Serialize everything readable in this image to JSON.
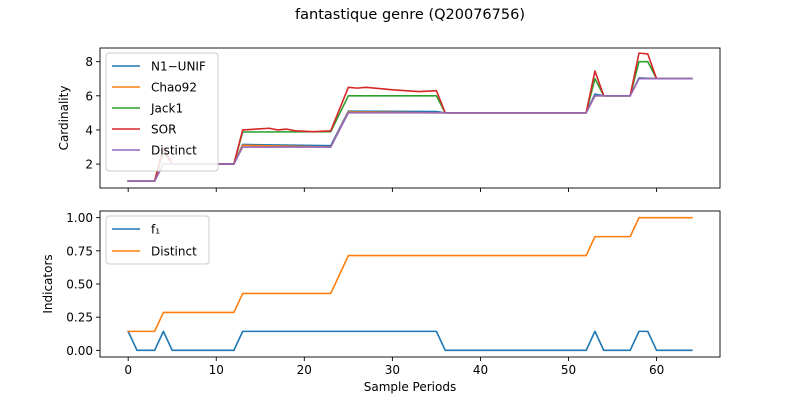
{
  "figure": {
    "title": "fantastique genre (Q20076756)"
  },
  "chart_data": [
    {
      "type": "line",
      "ylabel": "Cardinality",
      "xlabel": "",
      "xlim": [
        -3.2,
        67.2
      ],
      "ylim": [
        0.6,
        8.8
      ],
      "xticks": [
        0,
        10,
        20,
        30,
        40,
        50,
        60
      ],
      "yticks": [
        2,
        4,
        6,
        8
      ],
      "ytick_labels": [
        "2",
        "4",
        "6",
        "8"
      ],
      "legend_position": "upper-left",
      "series": [
        {
          "name": "N1−UNIF",
          "color": "#1f77b4",
          "points": [
            [
              0,
              1
            ],
            [
              3,
              1
            ],
            [
              4,
              2.7
            ],
            [
              5,
              2
            ],
            [
              12,
              2
            ],
            [
              13,
              3.15
            ],
            [
              23,
              3.08
            ],
            [
              25,
              5.1
            ],
            [
              35,
              5.08
            ],
            [
              36,
              5
            ],
            [
              52,
              5
            ],
            [
              53,
              6.1
            ],
            [
              54,
              6
            ],
            [
              57,
              6
            ],
            [
              58,
              7.05
            ],
            [
              60,
              7
            ],
            [
              64,
              7
            ]
          ]
        },
        {
          "name": "Chao92",
          "color": "#ff7f0e",
          "points": [
            [
              0,
              1
            ],
            [
              3,
              1
            ],
            [
              4,
              2.8
            ],
            [
              5,
              2
            ],
            [
              12,
              2
            ],
            [
              13,
              3.1
            ],
            [
              23,
              3
            ],
            [
              25,
              5.05
            ],
            [
              35,
              5
            ],
            [
              36,
              5
            ],
            [
              52,
              5
            ],
            [
              53,
              6
            ],
            [
              54,
              6
            ],
            [
              57,
              6
            ],
            [
              58,
              7
            ],
            [
              59,
              7
            ],
            [
              60,
              7
            ],
            [
              64,
              7
            ]
          ]
        },
        {
          "name": "Jack1",
          "color": "#2ca02c",
          "points": [
            [
              0,
              1
            ],
            [
              3,
              1
            ],
            [
              4,
              2.9
            ],
            [
              5,
              2
            ],
            [
              12,
              2
            ],
            [
              13,
              3.88
            ],
            [
              14,
              3.88
            ],
            [
              23,
              3.9
            ],
            [
              25,
              6
            ],
            [
              35,
              6
            ],
            [
              36,
              5
            ],
            [
              52,
              5
            ],
            [
              53,
              7
            ],
            [
              54,
              6
            ],
            [
              57,
              6
            ],
            [
              58,
              8
            ],
            [
              59,
              8
            ],
            [
              60,
              7
            ],
            [
              64,
              7
            ]
          ]
        },
        {
          "name": "SOR",
          "color": "#d62728",
          "points": [
            [
              0,
              1
            ],
            [
              3,
              1
            ],
            [
              4,
              2.95
            ],
            [
              5,
              2
            ],
            [
              12,
              2
            ],
            [
              13,
              4
            ],
            [
              16,
              4.1
            ],
            [
              17,
              4
            ],
            [
              18,
              4.05
            ],
            [
              19,
              3.95
            ],
            [
              21,
              3.9
            ],
            [
              23,
              3.95
            ],
            [
              25,
              6.5
            ],
            [
              26,
              6.45
            ],
            [
              27,
              6.5
            ],
            [
              30,
              6.35
            ],
            [
              33,
              6.25
            ],
            [
              35,
              6.3
            ],
            [
              36,
              5
            ],
            [
              52,
              5
            ],
            [
              53,
              7.45
            ],
            [
              54,
              6
            ],
            [
              57,
              6
            ],
            [
              58,
              8.5
            ],
            [
              59,
              8.45
            ],
            [
              60,
              7
            ],
            [
              64,
              7
            ]
          ]
        },
        {
          "name": "Distinct",
          "color": "#9467bd",
          "points": [
            [
              0,
              1
            ],
            [
              3,
              1
            ],
            [
              4,
              2
            ],
            [
              12,
              2
            ],
            [
              13,
              3
            ],
            [
              23,
              3
            ],
            [
              25,
              5
            ],
            [
              35,
              5
            ],
            [
              36,
              5
            ],
            [
              52,
              5
            ],
            [
              53,
              6
            ],
            [
              57,
              6
            ],
            [
              58,
              7
            ],
            [
              64,
              7
            ]
          ]
        }
      ]
    },
    {
      "type": "line",
      "ylabel": "Indicators",
      "xlabel": "Sample Periods",
      "xlim": [
        -3.2,
        67.2
      ],
      "ylim": [
        -0.05,
        1.05
      ],
      "xticks": [
        0,
        10,
        20,
        30,
        40,
        50,
        60
      ],
      "xtick_labels": [
        "0",
        "10",
        "20",
        "30",
        "40",
        "50",
        "60"
      ],
      "yticks": [
        0,
        0.25,
        0.5,
        0.75,
        1.0
      ],
      "ytick_labels": [
        "0.00",
        "0.25",
        "0.50",
        "0.75",
        "1.00"
      ],
      "legend_position": "upper-left",
      "series": [
        {
          "name": "f₁",
          "color": "#1f77b4",
          "points": [
            [
              0,
              0.143
            ],
            [
              1,
              0
            ],
            [
              3,
              0
            ],
            [
              4,
              0.143
            ],
            [
              5,
              0
            ],
            [
              12,
              0
            ],
            [
              13,
              0.143
            ],
            [
              35,
              0.143
            ],
            [
              36,
              0
            ],
            [
              52,
              0
            ],
            [
              53,
              0.143
            ],
            [
              54,
              0
            ],
            [
              57,
              0
            ],
            [
              58,
              0.143
            ],
            [
              59,
              0.143
            ],
            [
              60,
              0
            ],
            [
              64,
              0
            ]
          ]
        },
        {
          "name": "Distinct",
          "color": "#ff7f0e",
          "points": [
            [
              0,
              0.143
            ],
            [
              3,
              0.143
            ],
            [
              4,
              0.286
            ],
            [
              12,
              0.286
            ],
            [
              13,
              0.429
            ],
            [
              23,
              0.429
            ],
            [
              25,
              0.714
            ],
            [
              52,
              0.714
            ],
            [
              53,
              0.857
            ],
            [
              57,
              0.857
            ],
            [
              58,
              1.0
            ],
            [
              64,
              1.0
            ]
          ]
        }
      ]
    }
  ]
}
